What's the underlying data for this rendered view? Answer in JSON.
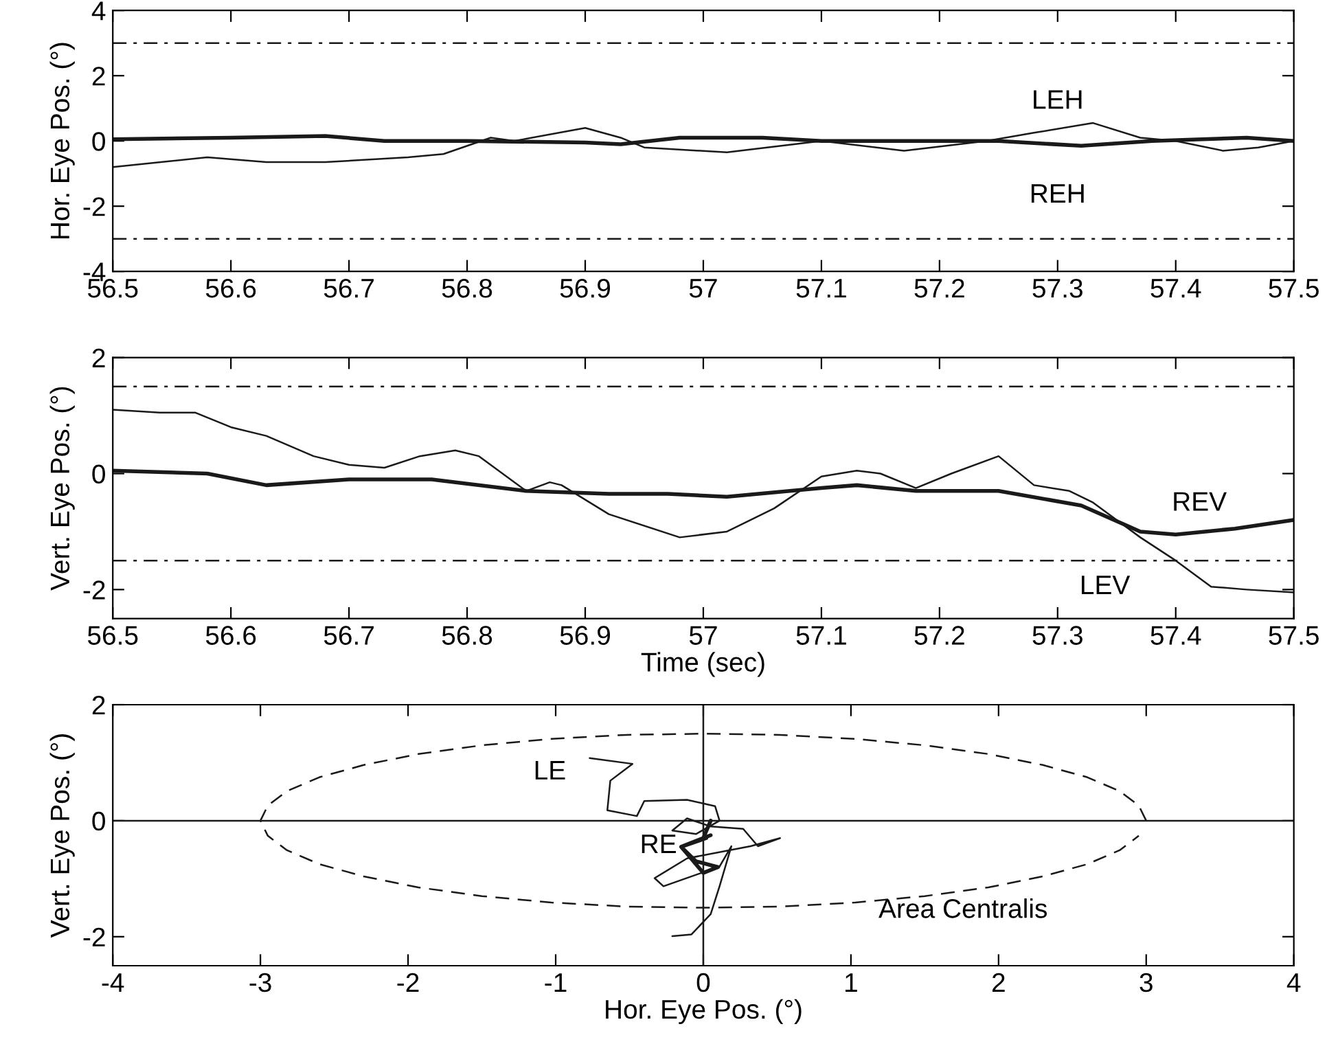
{
  "chart_data": [
    {
      "type": "line",
      "ylabel": "Hor. Eye Pos. (°)",
      "xlim": [
        56.5,
        57.5
      ],
      "xticks": [
        56.5,
        56.6,
        56.7,
        56.8,
        56.9,
        57,
        57.1,
        57.2,
        57.3,
        57.4,
        57.5
      ],
      "ylim": [
        -4,
        4
      ],
      "yticks": [
        -4,
        -2,
        0,
        2,
        4
      ],
      "grid": false,
      "series": [
        {
          "name": "LEH",
          "color": "#1a1a1a",
          "x": [
            56.5,
            56.58,
            56.63,
            56.68,
            56.75,
            56.78,
            56.82,
            56.84,
            56.9,
            56.93,
            56.95,
            57.02,
            57.1,
            57.17,
            57.24,
            57.28,
            57.33,
            57.37,
            57.4,
            57.44,
            57.47,
            57.5
          ],
          "values": [
            -0.8,
            -0.5,
            -0.65,
            -0.65,
            -0.5,
            -0.4,
            0.1,
            0,
            0.4,
            0.1,
            -0.2,
            -0.35,
            0,
            -0.3,
            0,
            0.25,
            0.55,
            0.1,
            0,
            -0.3,
            -0.2,
            0
          ]
        },
        {
          "name": "REH",
          "color": "#1a1a1a",
          "x": [
            56.5,
            56.6,
            56.68,
            56.73,
            56.8,
            56.9,
            56.93,
            56.98,
            57.05,
            57.1,
            57.2,
            57.25,
            57.32,
            57.38,
            57.46,
            57.5
          ],
          "values": [
            0.05,
            0.1,
            0.15,
            0,
            0,
            -0.05,
            -0.1,
            0.1,
            0.1,
            0,
            0,
            0,
            -0.15,
            0,
            0.1,
            0
          ]
        }
      ],
      "ref_lines": [
        {
          "axis": "y",
          "value": 3,
          "line_style": "dashdot"
        },
        {
          "axis": "y",
          "value": -3,
          "line_style": "dashdot"
        }
      ]
    },
    {
      "type": "line",
      "xlabel": "Time (sec)",
      "ylabel": "Vert. Eye Pos. (°)",
      "xlim": [
        56.5,
        57.5
      ],
      "xticks": [
        56.5,
        56.6,
        56.7,
        56.8,
        56.9,
        57,
        57.1,
        57.2,
        57.3,
        57.4,
        57.5
      ],
      "ylim": [
        -2.5,
        2
      ],
      "yticks": [
        -2,
        0,
        2
      ],
      "grid": false,
      "series": [
        {
          "name": "LEV",
          "color": "#1a1a1a",
          "x": [
            56.5,
            56.54,
            56.57,
            56.6,
            56.63,
            56.67,
            56.7,
            56.73,
            56.76,
            56.79,
            56.81,
            56.85,
            56.87,
            56.88,
            56.92,
            56.98,
            57.02,
            57.06,
            57.1,
            57.13,
            57.15,
            57.18,
            57.21,
            57.25,
            57.28,
            57.31,
            57.33,
            57.37,
            57.4,
            57.43,
            57.46,
            57.5
          ],
          "values": [
            1.1,
            1.05,
            1.05,
            0.8,
            0.65,
            0.3,
            0.15,
            0.1,
            0.3,
            0.4,
            0.3,
            -0.3,
            -0.15,
            -0.2,
            -0.7,
            -1.1,
            -1.0,
            -0.6,
            -0.05,
            0.05,
            0,
            -0.25,
            0,
            0.3,
            -0.2,
            -0.3,
            -0.5,
            -1.1,
            -1.5,
            -1.95,
            -2.0,
            -2.05
          ]
        },
        {
          "name": "REV",
          "color": "#1a1a1a",
          "x": [
            56.5,
            56.58,
            56.63,
            56.7,
            56.77,
            56.85,
            56.92,
            56.97,
            57.02,
            57.1,
            57.13,
            57.18,
            57.25,
            57.32,
            57.37,
            57.4,
            57.45,
            57.5
          ],
          "values": [
            0.05,
            0,
            -0.2,
            -0.1,
            -0.1,
            -0.3,
            -0.35,
            -0.35,
            -0.4,
            -0.25,
            -0.2,
            -0.3,
            -0.3,
            -0.55,
            -1.0,
            -1.05,
            -0.95,
            -0.8
          ]
        }
      ],
      "ref_lines": [
        {
          "axis": "y",
          "value": 1.5,
          "line_style": "dashdot"
        },
        {
          "axis": "y",
          "value": -1.5,
          "line_style": "dashdot"
        }
      ]
    },
    {
      "type": "line",
      "xlabel": "Hor. Eye Pos. (°)",
      "ylabel": "Vert. Eye Pos. (°)",
      "xlim": [
        -4,
        4
      ],
      "xticks": [
        -4,
        -3,
        -2,
        -1,
        0,
        1,
        2,
        3,
        4
      ],
      "ylim": [
        -2.5,
        2
      ],
      "yticks": [
        -2,
        0,
        2
      ],
      "grid": false,
      "series": [
        {
          "name": "LE",
          "color": "#1a1a1a",
          "x": [
            -0.77,
            -0.48,
            -0.63,
            -0.65,
            -0.45,
            -0.4,
            -0.11,
            0.08,
            0.11,
            -0.05,
            -0.21,
            -0.11,
            0.05,
            0.27,
            0.37,
            0.52,
            0.32,
            -0.11,
            -0.33,
            -0.27,
            0.11,
            0.19,
            0.11,
            0.05,
            -0.08,
            -0.21
          ],
          "values": [
            1.08,
            0.98,
            0.69,
            0.18,
            0.08,
            0.34,
            0.36,
            0.25,
            0,
            -0.23,
            -0.17,
            0.04,
            -0.1,
            -0.14,
            -0.44,
            -0.3,
            -0.44,
            -0.65,
            -0.99,
            -1.13,
            -0.79,
            -0.44,
            -1.13,
            -1.61,
            -1.96,
            -1.99
          ]
        },
        {
          "name": "RE",
          "color": "#1a1a1a",
          "x": [
            0.05,
            0,
            0.05,
            -0.05,
            -0.15,
            -0.1,
            0,
            0.1,
            -0.05,
            -0.15,
            0.02
          ],
          "values": [
            0,
            -0.3,
            -0.25,
            -0.35,
            -0.45,
            -0.6,
            -0.9,
            -0.8,
            -0.7,
            -0.45,
            -0.3
          ]
        },
        {
          "name": "Area Centralis",
          "color": "#1a1a1a",
          "line_style": "dashed",
          "x": [
            3,
            2.95,
            2.82,
            2.6,
            2.3,
            1.93,
            1.5,
            1.03,
            0.52,
            0,
            -0.52,
            -1.03,
            -1.5,
            -1.93,
            -2.3,
            -2.6,
            -2.82,
            -2.95,
            -3,
            -2.95,
            -2.82,
            -2.6,
            -2.3,
            -1.93,
            -1.5,
            -1.03,
            -0.52,
            0,
            0.52,
            1.03,
            1.5,
            1.93,
            2.3,
            2.6,
            2.82,
            2.95
          ],
          "values": [
            0,
            0.26,
            0.51,
            0.75,
            0.96,
            1.15,
            1.3,
            1.41,
            1.48,
            1.5,
            1.48,
            1.41,
            1.3,
            1.15,
            0.96,
            0.75,
            0.51,
            0.26,
            0,
            -0.26,
            -0.51,
            -0.75,
            -0.96,
            -1.15,
            -1.3,
            -1.41,
            -1.48,
            -1.5,
            -1.48,
            -1.41,
            -1.3,
            -1.15,
            -0.96,
            -0.75,
            -0.51,
            -0.26
          ]
        }
      ],
      "ref_lines": [
        {
          "axis": "x",
          "value": 0,
          "line_style": "solid"
        },
        {
          "axis": "y",
          "value": 0,
          "line_style": "solid"
        }
      ]
    }
  ]
}
